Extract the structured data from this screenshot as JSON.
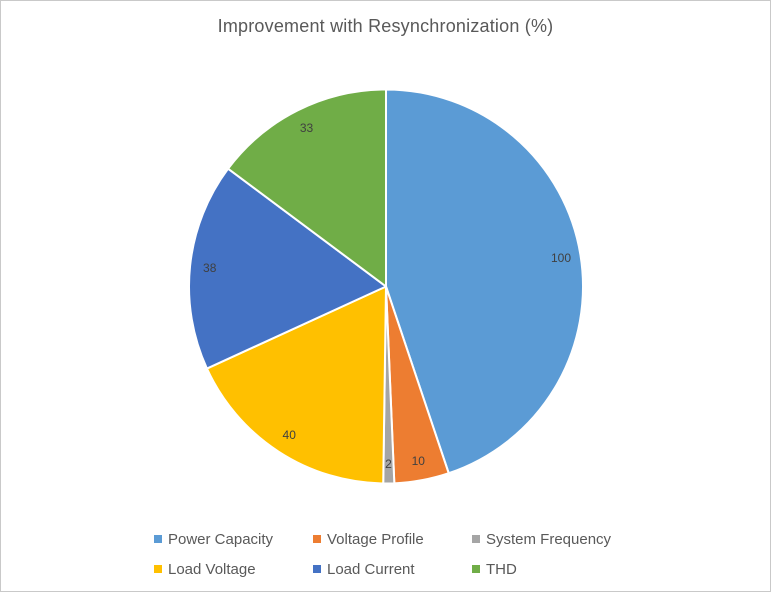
{
  "chart_data": {
    "type": "pie",
    "title": "Improvement with Resynchronization (%)",
    "categories": [
      "Power Capacity",
      "Voltage Profile",
      "System Frequency",
      "Load Voltage",
      "Load Current",
      "THD"
    ],
    "values": [
      100,
      10,
      2,
      40,
      38,
      33
    ],
    "data_labels": [
      "100",
      "10",
      "2",
      "40",
      "38",
      "33"
    ],
    "colors": [
      "#5B9BD5",
      "#ED7D31",
      "#A5A5A5",
      "#FFC000",
      "#4472C4",
      "#70AD47"
    ],
    "legend_position": "bottom",
    "legend_rows": 2,
    "start_angle_deg": 0,
    "direction": "clockwise",
    "slice_border_color": "#FFFFFF",
    "title_color": "#595959",
    "legend_text_color": "#595959",
    "data_label_color": "#404040"
  }
}
